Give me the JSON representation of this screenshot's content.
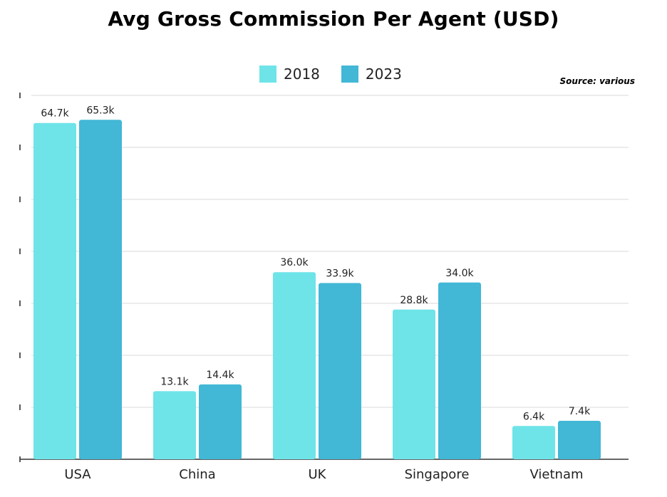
{
  "chart_data": {
    "type": "bar",
    "title": "Avg Gross Commission Per Agent (USD)",
    "source": "Source: various",
    "categories": [
      "USA",
      "China",
      "UK",
      "Singapore",
      "Vietnam"
    ],
    "series": [
      {
        "name": "2018",
        "color": "#6ee4e8",
        "values": [
          64.7,
          13.1,
          36.0,
          28.8,
          6.4
        ],
        "labels": [
          "64.7k",
          "13.1k",
          "36.0k",
          "28.8k",
          "6.4k"
        ]
      },
      {
        "name": "2023",
        "color": "#42b7d6",
        "values": [
          65.3,
          14.4,
          33.9,
          34.0,
          7.4
        ],
        "labels": [
          "65.3k",
          "14.4k",
          "33.9k",
          "34.0k",
          "7.4k"
        ]
      }
    ],
    "ylim": [
      0,
      70
    ],
    "grid": true,
    "legend_position": "top-center"
  }
}
